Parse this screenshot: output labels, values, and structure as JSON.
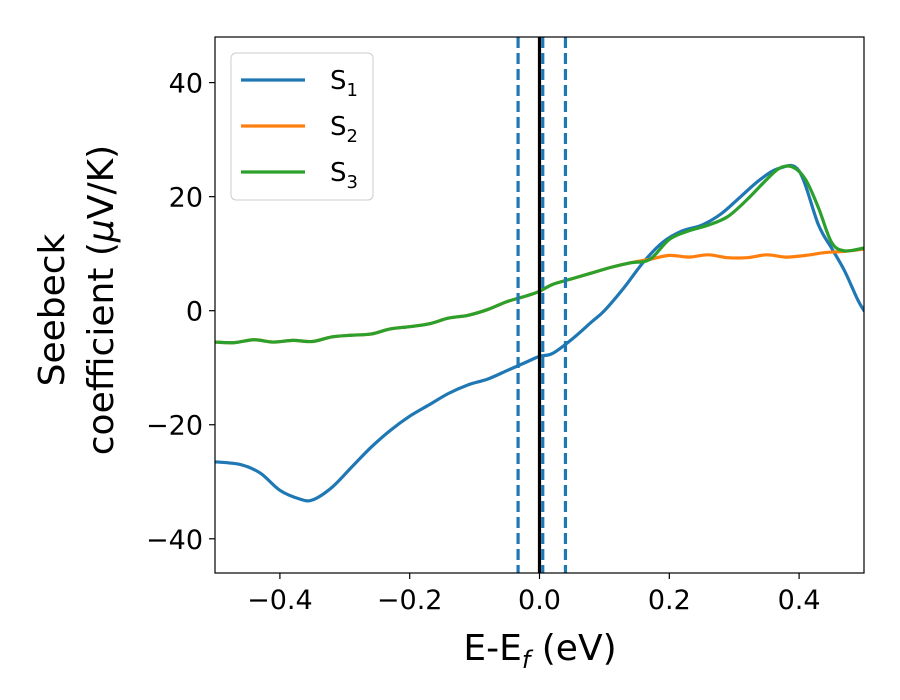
{
  "chart_data": {
    "type": "line",
    "xlabel": {
      "main": "E-E",
      "sub": "f",
      "unit": " (eV)"
    },
    "ylabel": {
      "line1": "Seebeck",
      "line2": "coefficient  (",
      "mu": "μ",
      "line2_end": "V/K)"
    },
    "xlim": [
      -0.5,
      0.5
    ],
    "ylim": [
      -46,
      48
    ],
    "xticks": [
      -0.4,
      -0.2,
      0.0,
      0.2,
      0.4
    ],
    "xtick_labels": [
      "−0.4",
      "−0.2",
      "0.0",
      "0.2",
      "0.4"
    ],
    "yticks": [
      40,
      20,
      0,
      -20,
      -40
    ],
    "ytick_labels": [
      "40",
      "20",
      "0",
      "−20",
      "−40"
    ],
    "grid": false,
    "legend_position": "top-left",
    "vlines": [
      {
        "x": -0.033,
        "style": "dashed",
        "color": "#1f77b4"
      },
      {
        "x": 0.0,
        "style": "solid",
        "color": "#000000"
      },
      {
        "x": 0.005,
        "style": "dashed",
        "color": "#1f77b4"
      },
      {
        "x": 0.04,
        "style": "dashed",
        "color": "#1f77b4"
      }
    ],
    "series": [
      {
        "name": "S",
        "sub": "1",
        "color": "#1f77b4",
        "x": [
          -0.5,
          -0.46,
          -0.43,
          -0.4,
          -0.37,
          -0.35,
          -0.32,
          -0.29,
          -0.26,
          -0.23,
          -0.2,
          -0.17,
          -0.14,
          -0.11,
          -0.08,
          -0.05,
          -0.02,
          0.0,
          0.02,
          0.05,
          0.08,
          0.1,
          0.13,
          0.16,
          0.19,
          0.22,
          0.25,
          0.28,
          0.31,
          0.34,
          0.37,
          0.4,
          0.43,
          0.45,
          0.47,
          0.49,
          0.5
        ],
        "y": [
          -26.5,
          -27,
          -28.5,
          -31.5,
          -33,
          -33.2,
          -31,
          -27.5,
          -24,
          -21,
          -18.5,
          -16.5,
          -14.5,
          -13,
          -12,
          -10.5,
          -9,
          -8,
          -7.5,
          -5,
          -2,
          0,
          4,
          8.5,
          12,
          14,
          15,
          17,
          20,
          23,
          25,
          24.5,
          15,
          11,
          7,
          2,
          0
        ]
      },
      {
        "name": "S",
        "sub": "2",
        "color": "#ff7f0e",
        "x": [
          -0.5,
          -0.47,
          -0.44,
          -0.41,
          -0.38,
          -0.35,
          -0.32,
          -0.29,
          -0.26,
          -0.23,
          -0.2,
          -0.17,
          -0.14,
          -0.11,
          -0.08,
          -0.05,
          -0.02,
          0.0,
          0.02,
          0.05,
          0.08,
          0.11,
          0.14,
          0.17,
          0.2,
          0.23,
          0.26,
          0.29,
          0.32,
          0.35,
          0.38,
          0.41,
          0.44,
          0.47,
          0.5
        ],
        "y": [
          -5.5,
          -5.6,
          -5.1,
          -5.5,
          -5.2,
          -5.4,
          -4.6,
          -4.3,
          -4.1,
          -3.2,
          -2.8,
          -2.3,
          -1.3,
          -0.8,
          0.2,
          1.6,
          2.6,
          3.4,
          4.6,
          5.6,
          6.6,
          7.6,
          8.4,
          9.0,
          9.7,
          9.4,
          9.8,
          9.3,
          9.3,
          9.8,
          9.4,
          9.7,
          10.2,
          10.4,
          10.8
        ]
      },
      {
        "name": "S",
        "sub": "3",
        "color": "#2ca02c",
        "x": [
          -0.5,
          -0.47,
          -0.44,
          -0.41,
          -0.38,
          -0.35,
          -0.32,
          -0.29,
          -0.26,
          -0.23,
          -0.2,
          -0.17,
          -0.14,
          -0.11,
          -0.08,
          -0.05,
          -0.02,
          0.0,
          0.02,
          0.05,
          0.08,
          0.11,
          0.14,
          0.17,
          0.2,
          0.23,
          0.26,
          0.29,
          0.32,
          0.35,
          0.37,
          0.39,
          0.41,
          0.43,
          0.45,
          0.47,
          0.5
        ],
        "y": [
          -5.5,
          -5.6,
          -5.1,
          -5.5,
          -5.2,
          -5.4,
          -4.6,
          -4.3,
          -4.1,
          -3.2,
          -2.8,
          -2.3,
          -1.3,
          -0.8,
          0.2,
          1.6,
          2.6,
          3.4,
          4.6,
          5.6,
          6.6,
          7.6,
          8.4,
          9.0,
          12.5,
          14,
          15,
          16.5,
          19.5,
          23,
          25,
          25.2,
          23,
          18,
          12,
          10.5,
          11
        ]
      }
    ]
  }
}
